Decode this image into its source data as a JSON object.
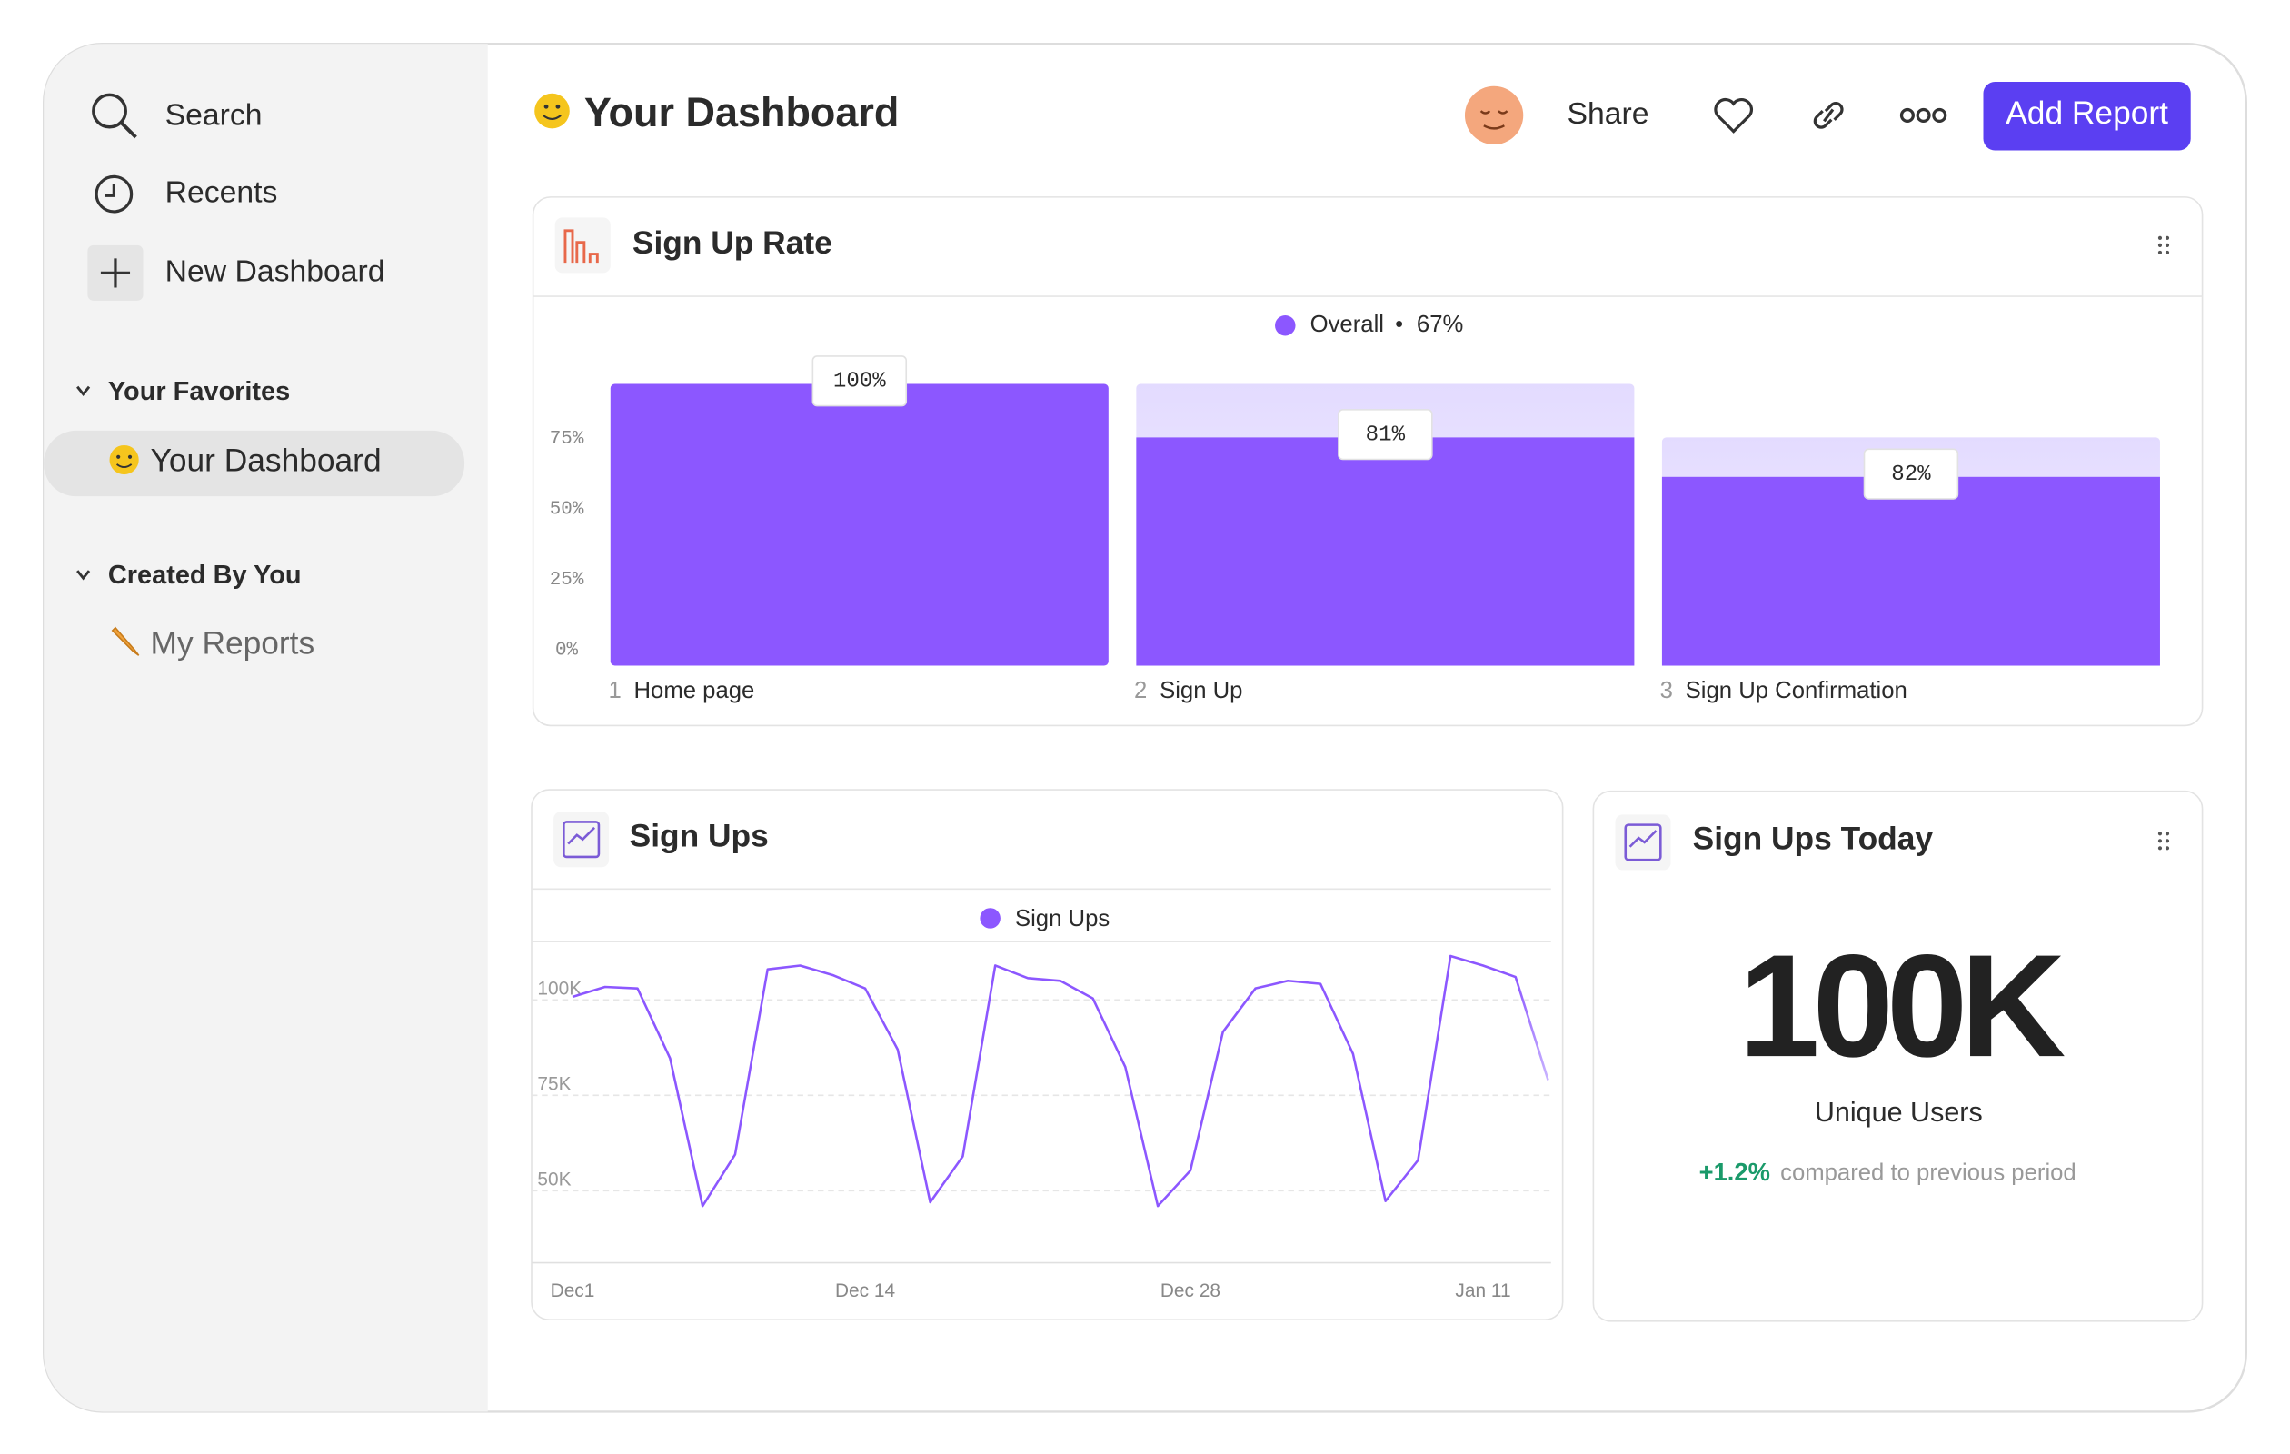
{
  "sidebar": {
    "items": [
      "Search",
      "Recents",
      "New Dashboard"
    ],
    "favorites": {
      "title": "Your Favorites",
      "items": [
        "Your Dashboard"
      ]
    },
    "created": {
      "title": "Created By You",
      "items": [
        "My Reports"
      ]
    }
  },
  "header": {
    "title": "Your Dashboard",
    "share": "Share",
    "button": "Add Report"
  },
  "chart_data": [
    {
      "type": "bar",
      "title": "Sign Up Rate",
      "categories": [
        "Home page",
        "Sign Up",
        "Sign Up Confirmation"
      ],
      "step_numbers": [
        1,
        2,
        3
      ],
      "series": [
        {
          "name": "Overall",
          "color": "#8c57ff",
          "values": [
            100,
            81,
            67
          ],
          "step_conversion": [
            100,
            81,
            82
          ],
          "step_labels": [
            "100%",
            "81%",
            "82%"
          ]
        }
      ],
      "overall_label": "67%",
      "ylim": [
        0,
        100
      ],
      "yticks": [
        {
          "value": 0,
          "label": "0%"
        },
        {
          "value": 25,
          "label": "25%"
        },
        {
          "value": 50,
          "label": "50%"
        },
        {
          "value": 75,
          "label": "75%"
        }
      ]
    },
    {
      "type": "line",
      "title": "Sign Ups",
      "categories": [
        "Dec1",
        null,
        null,
        null,
        null,
        null,
        null,
        null,
        null,
        "Dec 14",
        null,
        null,
        null,
        null,
        null,
        null,
        null,
        null,
        null,
        "Dec 28",
        null,
        null,
        null,
        null,
        null,
        null,
        null,
        null,
        "Jan 11",
        null,
        null
      ],
      "series": [
        {
          "name": "Sign Ups",
          "color": "#8c57ff",
          "values": [
            100800,
            103400,
            103000,
            84700,
            46000,
            59500,
            108000,
            109000,
            106500,
            103000,
            87000,
            47000,
            59000,
            109000,
            105700,
            105000,
            100400,
            82400,
            46000,
            55300,
            91600,
            103000,
            105000,
            104200,
            85900,
            47300,
            58000,
            111500,
            109000,
            106000,
            79000
          ]
        }
      ],
      "ylim": [
        30000,
        115000
      ],
      "yticks": [
        {
          "value": 50000,
          "label": "50K"
        },
        {
          "value": 75000,
          "label": "75K"
        },
        {
          "value": 100000,
          "label": "100K"
        }
      ],
      "grid": true
    }
  ],
  "metric": {
    "title": "Sign Ups Today",
    "value": "100K",
    "label": "Unique Users",
    "change": "+1.2%",
    "comparison": "compared to previous period"
  }
}
